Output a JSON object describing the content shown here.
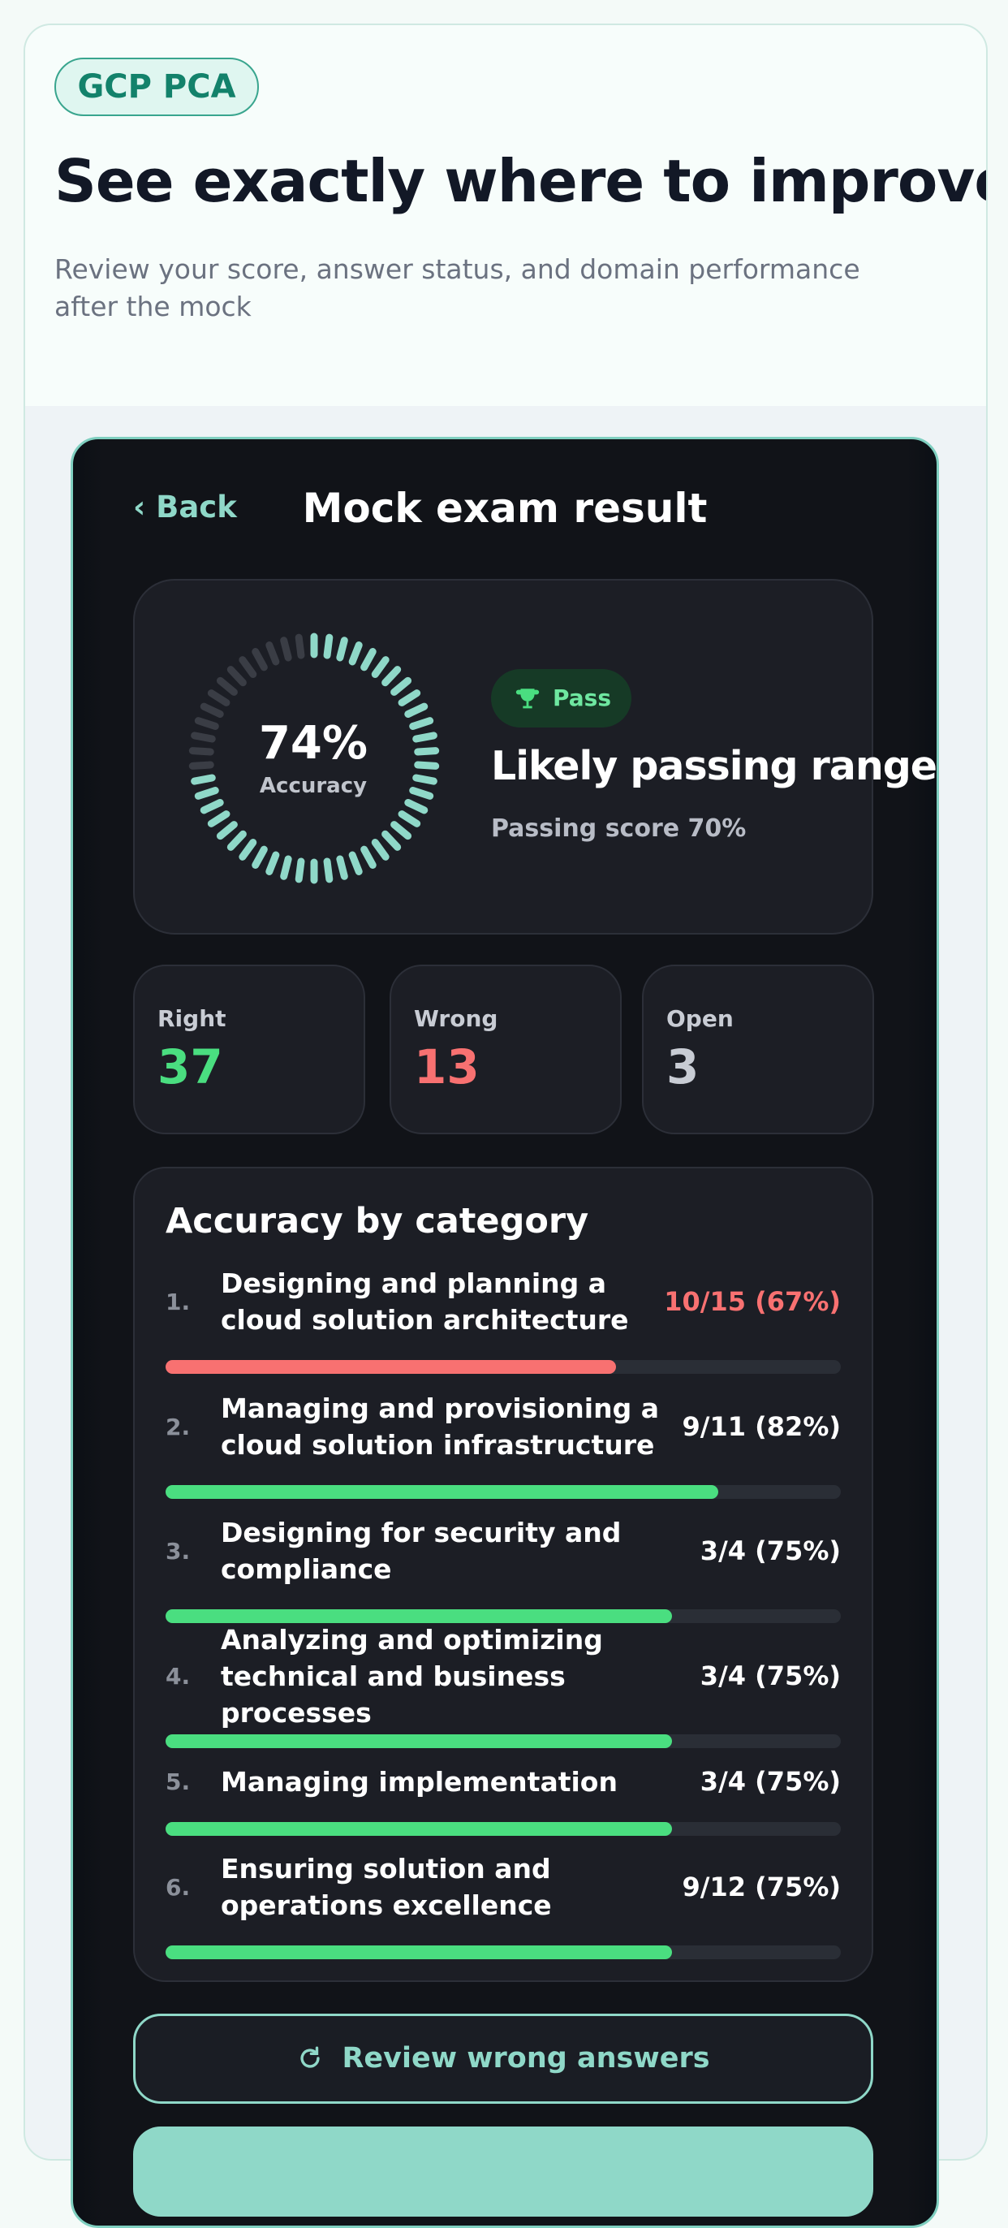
{
  "header": {
    "badge": "GCP PCA",
    "title": "See exactly where to improve",
    "subtitle": "Review your score, answer status, and domain performance after the mock"
  },
  "screen": {
    "back": "Back",
    "title": "Mock exam result",
    "score": {
      "value": "74%",
      "label": "Accuracy",
      "ring_color": "#8fd8c8"
    },
    "verdict": {
      "badge": "Pass",
      "headline": "Likely passing range",
      "detail": "Passing score 70%"
    },
    "stats": [
      {
        "label": "Right",
        "value": 37,
        "color": "#4ade80"
      },
      {
        "label": "Wrong",
        "value": 13,
        "color": "#f87171"
      },
      {
        "label": "Open",
        "value": 3,
        "color": "#c8ccd4"
      }
    ],
    "categories": {
      "title": "Accuracy by category",
      "items": [
        {
          "number": "1.",
          "name": "Designing and planning a cloud solution architecture",
          "score": "10/15 (67%)",
          "color": "#f87171"
        },
        {
          "number": "2.",
          "name": "Managing and provisioning a cloud solution infrastructure",
          "score": "9/11 (82%)",
          "color": "#4ade80"
        },
        {
          "number": "3.",
          "name": "Designing for security and compliance",
          "score": "3/4 (75%)",
          "color": "#4ade80"
        },
        {
          "number": "4.",
          "name": "Analyzing and optimizing technical and business processes",
          "score": "3/4 (75%)",
          "color": "#4ade80"
        },
        {
          "number": "5.",
          "name": "Managing implementation",
          "score": "3/4 (75%)",
          "color": "#4ade80"
        },
        {
          "number": "6.",
          "name": "Ensuring solution and operations excellence",
          "score": "9/12 (75%)",
          "color": "#4ade80"
        }
      ]
    },
    "review_button": "Review wrong answers"
  }
}
